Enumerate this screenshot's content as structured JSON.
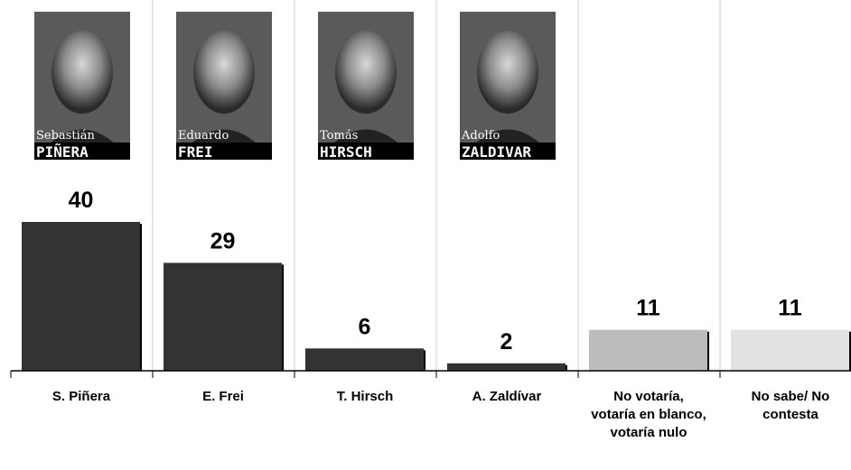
{
  "chart_data": {
    "type": "bar",
    "categories": [
      "S. Piñera",
      "E. Frei",
      "T. Hirsch",
      "A. Zaldívar",
      "No votaría, votaría en blanco, votaría nulo",
      "No sabe/ No contesta"
    ],
    "values": [
      40,
      29,
      6,
      2,
      11,
      11
    ],
    "colors": [
      "#333333",
      "#333333",
      "#333333",
      "#333333",
      "#bcbcbc",
      "#e2e2e2"
    ],
    "photo_captions": [
      {
        "first": "Sebastián",
        "last": "PIÑERA"
      },
      {
        "first": "Eduardo",
        "last": "FREI"
      },
      {
        "first": "Tomás",
        "last": "HIRSCH"
      },
      {
        "first": "Adolfo",
        "last": "ZALDIVAR"
      }
    ]
  }
}
